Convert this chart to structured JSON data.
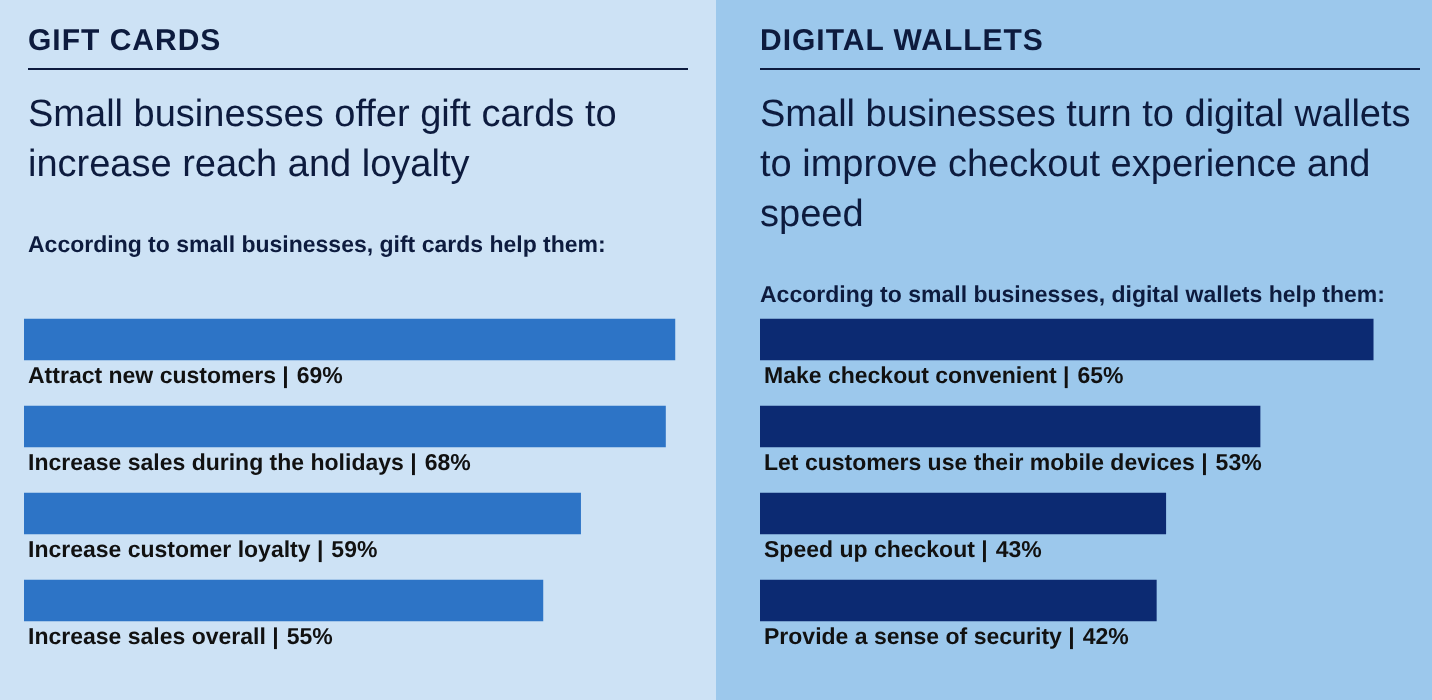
{
  "chart_data": [
    {
      "type": "bar",
      "orientation": "horizontal",
      "title": "GIFT CARDS",
      "subtitle": "Small businesses offer gift cards to increase reach and loyalty",
      "annotations": [
        "According to small businesses, gift cards help them:"
      ],
      "categories": [
        "Attract new customers |",
        "Increase sales during the holidays |",
        "Increase customer loyalty |",
        "Increase sales overall |"
      ],
      "values": [
        69,
        68,
        59,
        55
      ],
      "value_labels": [
        "69%",
        "68%",
        "59%",
        "55%"
      ],
      "color": "#2d74c6",
      "legend": false,
      "tick_labels": false
    },
    {
      "type": "bar",
      "orientation": "horizontal",
      "title": "DIGITAL WALLETS",
      "subtitle": "Small businesses turn to digital wallets to improve checkout experience and speed",
      "annotations": [
        "According to small businesses, digital wallets help them:"
      ],
      "categories": [
        "Make checkout convenient |",
        "Let customers use their mobile devices |",
        "Speed up checkout |",
        "Provide a sense of security |"
      ],
      "values": [
        65,
        53,
        43,
        42
      ],
      "value_labels": [
        "65%",
        "53%",
        "43%",
        "42%"
      ],
      "color": "#0c2a72",
      "legend": false,
      "tick_labels": false
    }
  ]
}
